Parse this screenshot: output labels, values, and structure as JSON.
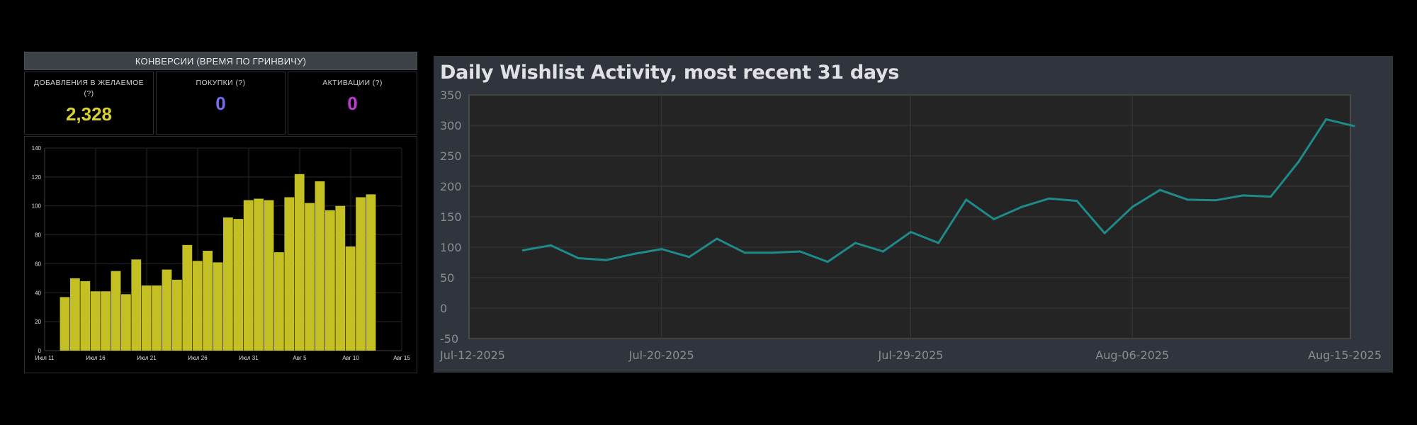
{
  "conversions": {
    "header": "КОНВЕРСИИ (ВРЕМЯ ПО ГРИНВИЧУ)",
    "stats": [
      {
        "label": "ДОБАВЛЕНИЯ В ЖЕЛАЕМОЕ (?)",
        "value": "2,328",
        "color": "#d8d033"
      },
      {
        "label": "ПОКУПКИ (?)",
        "value": "0",
        "color": "#7a6cf0"
      },
      {
        "label": "АКТИВАЦИИ (?)",
        "value": "0",
        "color": "#c43ad6"
      }
    ]
  },
  "chart_data": [
    {
      "type": "bar",
      "title": "",
      "xlabel": "",
      "ylabel": "",
      "ylim": [
        0,
        140
      ],
      "yticks": [
        0,
        20,
        40,
        60,
        80,
        100,
        120,
        140
      ],
      "xtick_labels": [
        "Июл 11",
        "Июл 16",
        "Июл 21",
        "Июл 26",
        "Июл 31",
        "Авг 5",
        "Авг 10",
        "Авг 15"
      ],
      "values": [
        37,
        50,
        48,
        41,
        41,
        55,
        39,
        63,
        45,
        45,
        56,
        49,
        73,
        62,
        69,
        61,
        92,
        91,
        104,
        105,
        104,
        68,
        106,
        122,
        102,
        117,
        97,
        100,
        72,
        106,
        108
      ],
      "bar_color": "#c4c024",
      "grid": true
    },
    {
      "type": "line",
      "title": "Daily Wishlist Activity, most recent 31 days",
      "xlabel": "",
      "ylabel": "",
      "ylim": [
        -50,
        350
      ],
      "yticks": [
        -50,
        0,
        50,
        100,
        150,
        200,
        250,
        300,
        350
      ],
      "xtick_labels": [
        "Jul-12-2025",
        "Jul-20-2025",
        "Jul-29-2025",
        "Aug-06-2025",
        "Aug-15-2025"
      ],
      "values": [
        95,
        103,
        82,
        79,
        89,
        97,
        84,
        114,
        91,
        91,
        93,
        76,
        107,
        93,
        125,
        107,
        178,
        146,
        166,
        180,
        176,
        123,
        166,
        194,
        178,
        177,
        185,
        183,
        240,
        310,
        299
      ],
      "line_color": "#1e8a8a",
      "grid": true
    }
  ]
}
